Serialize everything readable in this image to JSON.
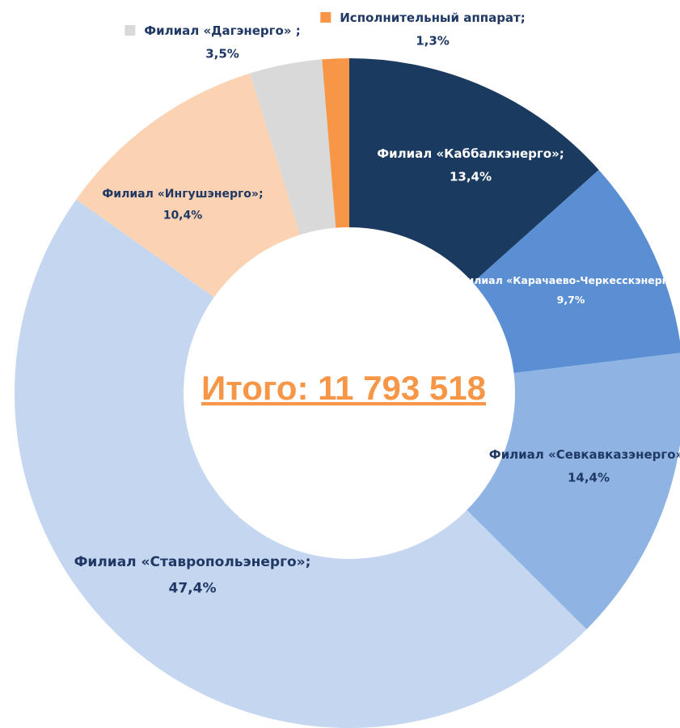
{
  "chart_data": {
    "type": "donut",
    "title": "Итого: 11 793 518",
    "categories": [
      "Филиал «Каббалкэнерго»;",
      "Филиал «Карачаево-Черкесскэнерго»;",
      "Филиал «Севкавказэнерго»;",
      "Филиал «Ставропольэнерго»;",
      "Филиал «Ингушэнерго»;",
      "Филиал «Дагэнерго» ;",
      "Исполнительный аппарат;"
    ],
    "values": [
      13.4,
      9.7,
      14.4,
      47.4,
      10.4,
      3.5,
      1.3
    ],
    "value_labels": [
      "13,4%",
      "9,7%",
      "14,4%",
      "47,4%",
      "10,4%",
      "3,5%",
      "1,3%"
    ],
    "colors": [
      "#1a3a60",
      "#5b8fd4",
      "#8fb4e3",
      "#c5d7f0",
      "#fbd3b3",
      "#d9d9d9",
      "#f79646"
    ]
  }
}
